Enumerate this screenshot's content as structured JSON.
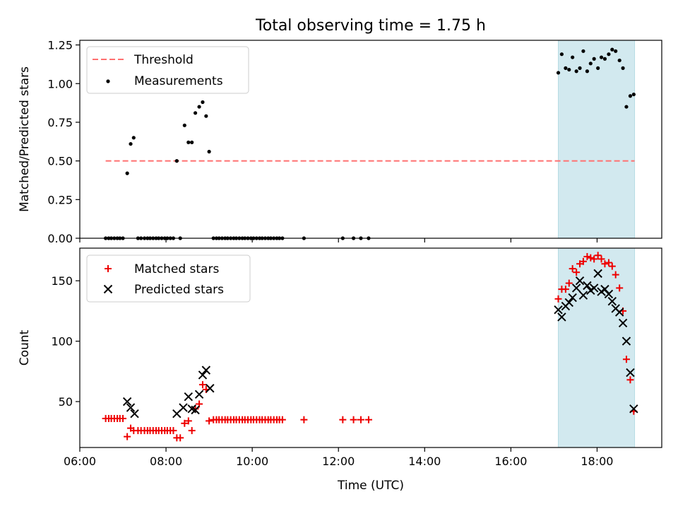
{
  "title": "Total observing time = 1.75 h",
  "colors": {
    "threshold": "#ff7070",
    "measurement": "#000000",
    "matched": "#ee0000",
    "predicted": "#000000",
    "highlight": "#d2e9ef"
  },
  "chart_data": [
    {
      "type": "scatter",
      "ylabel": "Matched/Predicted stars",
      "xlabel": "",
      "x_unit": "hours UTC",
      "xlim": [
        6.0,
        19.5
      ],
      "ylim": [
        0.0,
        1.28
      ],
      "xticks": [
        6,
        8,
        10,
        12,
        14,
        16,
        18
      ],
      "yticks": [
        0.0,
        0.25,
        0.5,
        0.75,
        1.0,
        1.25
      ],
      "ytick_labels": [
        "0.00",
        "0.25",
        "0.50",
        "0.75",
        "1.00",
        "1.25"
      ],
      "legend": {
        "position": "top-left",
        "entries": [
          "Threshold",
          "Measurements"
        ]
      },
      "highlight_span": [
        17.1,
        18.87
      ],
      "threshold": {
        "name": "Threshold",
        "value": 0.5,
        "x_range": [
          6.6,
          18.87
        ]
      },
      "series": [
        {
          "name": "Measurements",
          "points": [
            [
              6.6,
              0
            ],
            [
              6.67,
              0
            ],
            [
              6.73,
              0
            ],
            [
              6.8,
              0
            ],
            [
              6.87,
              0
            ],
            [
              6.93,
              0
            ],
            [
              7.0,
              0
            ],
            [
              7.1,
              0.42
            ],
            [
              7.18,
              0.61
            ],
            [
              7.25,
              0.65
            ],
            [
              7.35,
              0
            ],
            [
              7.42,
              0
            ],
            [
              7.5,
              0
            ],
            [
              7.57,
              0
            ],
            [
              7.63,
              0
            ],
            [
              7.7,
              0
            ],
            [
              7.77,
              0
            ],
            [
              7.83,
              0
            ],
            [
              7.9,
              0
            ],
            [
              7.97,
              0
            ],
            [
              8.03,
              0
            ],
            [
              8.1,
              0
            ],
            [
              8.17,
              0
            ],
            [
              8.25,
              0.5
            ],
            [
              8.33,
              0
            ],
            [
              8.43,
              0.73
            ],
            [
              8.52,
              0.62
            ],
            [
              8.6,
              0.62
            ],
            [
              8.68,
              0.81
            ],
            [
              8.77,
              0.85
            ],
            [
              8.85,
              0.88
            ],
            [
              8.93,
              0.79
            ],
            [
              9.0,
              0.56
            ],
            [
              9.1,
              0
            ],
            [
              9.17,
              0
            ],
            [
              9.23,
              0
            ],
            [
              9.3,
              0
            ],
            [
              9.37,
              0
            ],
            [
              9.43,
              0
            ],
            [
              9.5,
              0
            ],
            [
              9.57,
              0
            ],
            [
              9.63,
              0
            ],
            [
              9.7,
              0
            ],
            [
              9.77,
              0
            ],
            [
              9.83,
              0
            ],
            [
              9.9,
              0
            ],
            [
              9.97,
              0
            ],
            [
              10.03,
              0
            ],
            [
              10.1,
              0
            ],
            [
              10.17,
              0
            ],
            [
              10.23,
              0
            ],
            [
              10.3,
              0
            ],
            [
              10.37,
              0
            ],
            [
              10.43,
              0
            ],
            [
              10.5,
              0
            ],
            [
              10.57,
              0
            ],
            [
              10.63,
              0
            ],
            [
              10.7,
              0
            ],
            [
              11.2,
              0
            ],
            [
              12.1,
              0
            ],
            [
              12.35,
              0
            ],
            [
              12.52,
              0
            ],
            [
              12.7,
              0
            ],
            [
              17.1,
              1.07
            ],
            [
              17.18,
              1.19
            ],
            [
              17.27,
              1.1
            ],
            [
              17.35,
              1.09
            ],
            [
              17.43,
              1.17
            ],
            [
              17.52,
              1.08
            ],
            [
              17.6,
              1.1
            ],
            [
              17.68,
              1.21
            ],
            [
              17.77,
              1.08
            ],
            [
              17.85,
              1.13
            ],
            [
              17.93,
              1.16
            ],
            [
              18.02,
              1.1
            ],
            [
              18.1,
              1.17
            ],
            [
              18.18,
              1.16
            ],
            [
              18.27,
              1.19
            ],
            [
              18.35,
              1.22
            ],
            [
              18.43,
              1.21
            ],
            [
              18.52,
              1.15
            ],
            [
              18.6,
              1.1
            ],
            [
              18.68,
              0.85
            ],
            [
              18.77,
              0.92
            ],
            [
              18.85,
              0.93
            ]
          ]
        }
      ]
    },
    {
      "type": "scatter",
      "ylabel": "Count",
      "xlabel": "Time (UTC)",
      "x_unit": "hours UTC",
      "xlim": [
        6.0,
        19.5
      ],
      "ylim": [
        12,
        177
      ],
      "xticks": [
        6,
        8,
        10,
        12,
        14,
        16,
        18
      ],
      "xtick_labels": [
        "06:00",
        "08:00",
        "10:00",
        "12:00",
        "14:00",
        "16:00",
        "18:00"
      ],
      "yticks": [
        50,
        100,
        150
      ],
      "ytick_labels": [
        "50",
        "100",
        "150"
      ],
      "legend": {
        "position": "top-left",
        "entries": [
          "Matched stars",
          "Predicted stars"
        ]
      },
      "highlight_span": [
        17.1,
        18.87
      ],
      "series": [
        {
          "name": "Matched stars",
          "marker": "plus",
          "points": [
            [
              6.6,
              36
            ],
            [
              6.67,
              36
            ],
            [
              6.73,
              36
            ],
            [
              6.8,
              36
            ],
            [
              6.87,
              36
            ],
            [
              6.93,
              36
            ],
            [
              7.0,
              36
            ],
            [
              7.1,
              21
            ],
            [
              7.18,
              28
            ],
            [
              7.25,
              26
            ],
            [
              7.35,
              26
            ],
            [
              7.42,
              26
            ],
            [
              7.5,
              26
            ],
            [
              7.57,
              26
            ],
            [
              7.63,
              26
            ],
            [
              7.7,
              26
            ],
            [
              7.77,
              26
            ],
            [
              7.83,
              26
            ],
            [
              7.9,
              26
            ],
            [
              7.97,
              26
            ],
            [
              8.03,
              26
            ],
            [
              8.1,
              26
            ],
            [
              8.17,
              26
            ],
            [
              8.25,
              20
            ],
            [
              8.33,
              20
            ],
            [
              8.43,
              32
            ],
            [
              8.52,
              34
            ],
            [
              8.6,
              26
            ],
            [
              8.68,
              44
            ],
            [
              8.77,
              48
            ],
            [
              8.85,
              64
            ],
            [
              8.93,
              60
            ],
            [
              9.0,
              34
            ],
            [
              9.1,
              35
            ],
            [
              9.17,
              35
            ],
            [
              9.23,
              35
            ],
            [
              9.3,
              35
            ],
            [
              9.37,
              35
            ],
            [
              9.43,
              35
            ],
            [
              9.5,
              35
            ],
            [
              9.57,
              35
            ],
            [
              9.63,
              35
            ],
            [
              9.7,
              35
            ],
            [
              9.77,
              35
            ],
            [
              9.83,
              35
            ],
            [
              9.9,
              35
            ],
            [
              9.97,
              35
            ],
            [
              10.03,
              35
            ],
            [
              10.1,
              35
            ],
            [
              10.17,
              35
            ],
            [
              10.23,
              35
            ],
            [
              10.3,
              35
            ],
            [
              10.37,
              35
            ],
            [
              10.43,
              35
            ],
            [
              10.5,
              35
            ],
            [
              10.57,
              35
            ],
            [
              10.63,
              35
            ],
            [
              10.7,
              35
            ],
            [
              11.2,
              35
            ],
            [
              12.1,
              35
            ],
            [
              12.35,
              35
            ],
            [
              12.52,
              35
            ],
            [
              12.7,
              35
            ],
            [
              17.1,
              135
            ],
            [
              17.18,
              143
            ],
            [
              17.27,
              143
            ],
            [
              17.35,
              148
            ],
            [
              17.43,
              160
            ],
            [
              17.52,
              157
            ],
            [
              17.6,
              164
            ],
            [
              17.68,
              166
            ],
            [
              17.77,
              170
            ],
            [
              17.85,
              169
            ],
            [
              17.93,
              168
            ],
            [
              18.02,
              171
            ],
            [
              18.1,
              168
            ],
            [
              18.18,
              164
            ],
            [
              18.27,
              165
            ],
            [
              18.35,
              162
            ],
            [
              18.43,
              155
            ],
            [
              18.52,
              144
            ],
            [
              18.6,
              125
            ],
            [
              18.68,
              85
            ],
            [
              18.77,
              68
            ],
            [
              18.85,
              42
            ]
          ]
        },
        {
          "name": "Predicted stars",
          "marker": "x",
          "points": [
            [
              7.1,
              50
            ],
            [
              7.18,
              45
            ],
            [
              7.27,
              40
            ],
            [
              8.25,
              40
            ],
            [
              8.4,
              45
            ],
            [
              8.52,
              54
            ],
            [
              8.6,
              44
            ],
            [
              8.68,
              43
            ],
            [
              8.77,
              56
            ],
            [
              8.85,
              72
            ],
            [
              8.93,
              76
            ],
            [
              9.02,
              61
            ],
            [
              17.1,
              126
            ],
            [
              17.18,
              120
            ],
            [
              17.27,
              129
            ],
            [
              17.35,
              132
            ],
            [
              17.43,
              136
            ],
            [
              17.52,
              144
            ],
            [
              17.6,
              150
            ],
            [
              17.68,
              138
            ],
            [
              17.77,
              146
            ],
            [
              17.85,
              142
            ],
            [
              17.93,
              144
            ],
            [
              18.02,
              156
            ],
            [
              18.1,
              141
            ],
            [
              18.18,
              143
            ],
            [
              18.27,
              139
            ],
            [
              18.35,
              133
            ],
            [
              18.43,
              127
            ],
            [
              18.52,
              124
            ],
            [
              18.6,
              115
            ],
            [
              18.68,
              100
            ],
            [
              18.77,
              74
            ],
            [
              18.85,
              44
            ]
          ]
        }
      ]
    }
  ]
}
